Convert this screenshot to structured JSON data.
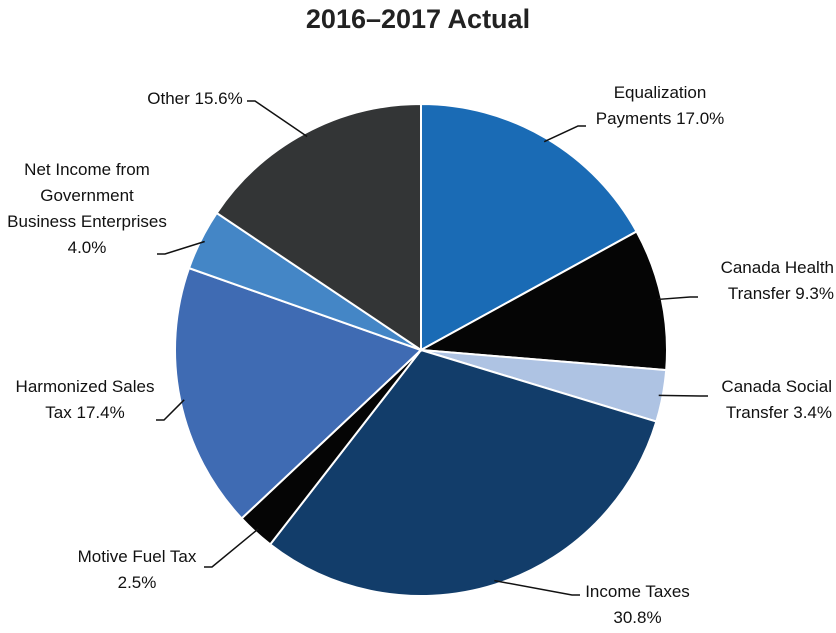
{
  "chart_data": {
    "type": "pie",
    "title": "2016–2017 Actual",
    "categories": [
      "Equalization Payments",
      "Canada Health Transfer",
      "Canada Social Transfer",
      "Income Taxes",
      "Motive Fuel Tax",
      "Harmonized Sales Tax",
      "Net Income from Government Business Enterprises",
      "Other"
    ],
    "values": [
      17,
      9.3,
      3.4,
      30.8,
      2.5,
      17.4,
      4,
      15.6
    ],
    "value_labels": [
      "17.0%",
      "9.3%",
      "3.4%",
      "30.8%",
      "2.5%",
      "17.4%",
      "4.0%",
      "15.6%"
    ],
    "colors": [
      "#1a6bb5",
      "#050505",
      "#aec3e3",
      "#123d6a",
      "#050505",
      "#3f6bb3",
      "#4486c6",
      "#333536"
    ]
  }
}
